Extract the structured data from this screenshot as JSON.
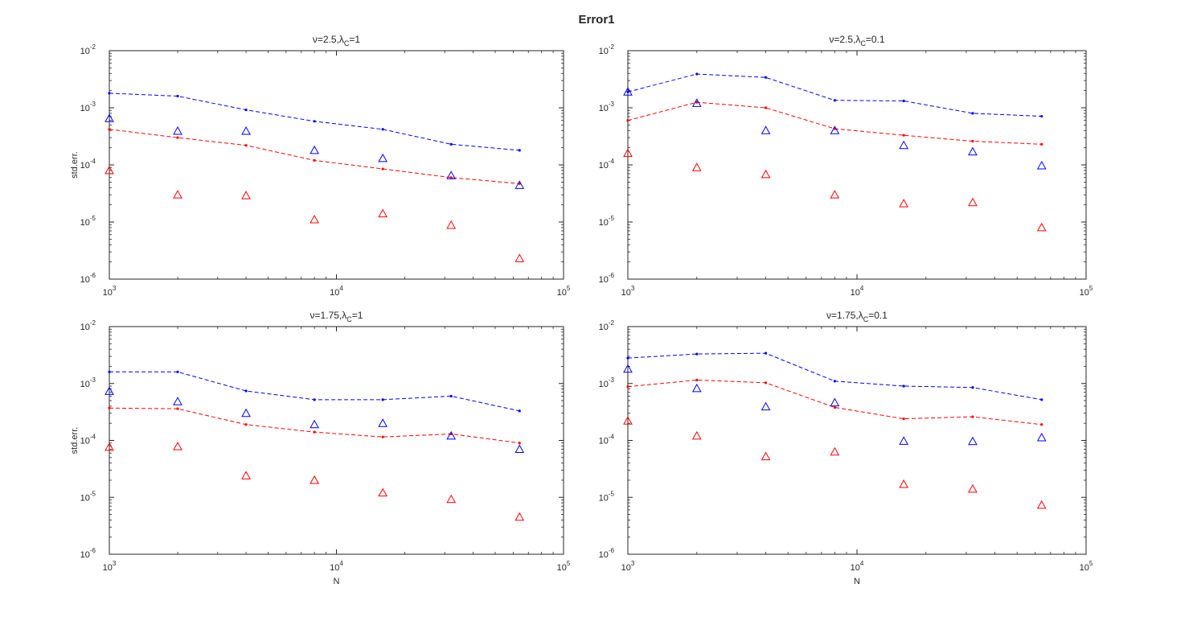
{
  "figure_title": "Error1",
  "chart_data": [
    {
      "type": "line",
      "title": {
        "pre": "ν=2.5,λ",
        "sub": "C",
        "post": "=1"
      },
      "xlabel": "",
      "ylabel": "std.err.",
      "xscale": "log",
      "yscale": "log",
      "xlim": [
        1000,
        100000
      ],
      "ylim": [
        1e-06,
        0.01
      ],
      "xticks": [
        {
          "base": "10",
          "exp": "3"
        },
        {
          "base": "10",
          "exp": "4"
        },
        {
          "base": "10",
          "exp": "5"
        }
      ],
      "yticks": [
        {
          "base": "10",
          "exp": "-6"
        },
        {
          "base": "10",
          "exp": "-5"
        },
        {
          "base": "10",
          "exp": "-4"
        },
        {
          "base": "10",
          "exp": "-3"
        },
        {
          "base": "10",
          "exp": "-2"
        }
      ],
      "x": [
        1000,
        2000,
        4000,
        8000,
        16000,
        32000,
        64000
      ],
      "series": [
        {
          "name": "blue-line",
          "style": "dashed-line",
          "color": "#0000ff",
          "values": [
            0.0018,
            0.0016,
            0.00092,
            0.00058,
            0.00042,
            0.00023,
            0.00018
          ]
        },
        {
          "name": "red-line",
          "style": "dashed-line",
          "color": "#ff0000",
          "values": [
            0.00042,
            0.0003,
            0.00022,
            0.00012,
            8.5e-05,
            6e-05,
            4.7e-05
          ]
        },
        {
          "name": "blue-triangles",
          "style": "triangle",
          "color": "#0000ff",
          "values": [
            0.00065,
            0.00039,
            0.00039,
            0.00018,
            0.00013,
            6.5e-05,
            4.4e-05
          ]
        },
        {
          "name": "red-triangles",
          "style": "triangle",
          "color": "#ff0000",
          "values": [
            8e-05,
            3e-05,
            2.9e-05,
            1.1e-05,
            1.4e-05,
            8.8e-06,
            2.3e-06
          ]
        }
      ]
    },
    {
      "type": "line",
      "title": {
        "pre": "ν=2.5,λ",
        "sub": "C",
        "post": "=0.1"
      },
      "xlabel": "",
      "ylabel": "",
      "xscale": "log",
      "yscale": "log",
      "xlim": [
        1000,
        100000
      ],
      "ylim": [
        1e-06,
        0.01
      ],
      "xticks": [
        {
          "base": "10",
          "exp": "3"
        },
        {
          "base": "10",
          "exp": "4"
        },
        {
          "base": "10",
          "exp": "5"
        }
      ],
      "yticks": [
        {
          "base": "10",
          "exp": "-6"
        },
        {
          "base": "10",
          "exp": "-5"
        },
        {
          "base": "10",
          "exp": "-4"
        },
        {
          "base": "10",
          "exp": "-3"
        },
        {
          "base": "10",
          "exp": "-2"
        }
      ],
      "x": [
        1000,
        2000,
        4000,
        8000,
        16000,
        32000,
        64000
      ],
      "series": [
        {
          "name": "blue-line",
          "style": "dashed-line",
          "color": "#0000ff",
          "values": [
            0.0019,
            0.0039,
            0.0034,
            0.00135,
            0.00132,
            0.0008,
            0.00071
          ]
        },
        {
          "name": "red-line",
          "style": "dashed-line",
          "color": "#ff0000",
          "values": [
            0.0006,
            0.00125,
            0.001,
            0.00043,
            0.00033,
            0.00026,
            0.00023
          ]
        },
        {
          "name": "blue-triangles",
          "style": "triangle",
          "color": "#0000ff",
          "values": [
            0.0019,
            0.0012,
            0.0004,
            0.0004,
            0.00022,
            0.00017,
            9.7e-05
          ]
        },
        {
          "name": "red-triangles",
          "style": "triangle",
          "color": "#ff0000",
          "values": [
            0.00016,
            9e-05,
            6.8e-05,
            3e-05,
            2.1e-05,
            2.2e-05,
            8e-06
          ]
        }
      ]
    },
    {
      "type": "line",
      "title": {
        "pre": "ν=1.75,λ",
        "sub": "C",
        "post": "=1"
      },
      "xlabel": "N",
      "ylabel": "std.err.",
      "xscale": "log",
      "yscale": "log",
      "xlim": [
        1000,
        100000
      ],
      "ylim": [
        1e-06,
        0.01
      ],
      "xticks": [
        {
          "base": "10",
          "exp": "3"
        },
        {
          "base": "10",
          "exp": "4"
        },
        {
          "base": "10",
          "exp": "5"
        }
      ],
      "yticks": [
        {
          "base": "10",
          "exp": "-6"
        },
        {
          "base": "10",
          "exp": "-5"
        },
        {
          "base": "10",
          "exp": "-4"
        },
        {
          "base": "10",
          "exp": "-3"
        },
        {
          "base": "10",
          "exp": "-2"
        }
      ],
      "x": [
        1000,
        2000,
        4000,
        8000,
        16000,
        32000,
        64000
      ],
      "series": [
        {
          "name": "blue-line",
          "style": "dashed-line",
          "color": "#0000ff",
          "values": [
            0.0016,
            0.0016,
            0.00074,
            0.00052,
            0.00052,
            0.0006,
            0.00033
          ]
        },
        {
          "name": "red-line",
          "style": "dashed-line",
          "color": "#ff0000",
          "values": [
            0.00037,
            0.00036,
            0.00019,
            0.00014,
            0.000115,
            0.00013,
            9e-05
          ]
        },
        {
          "name": "blue-triangles",
          "style": "triangle",
          "color": "#0000ff",
          "values": [
            0.00073,
            0.00048,
            0.0003,
            0.00019,
            0.0002,
            0.00012,
            7e-05
          ]
        },
        {
          "name": "red-triangles",
          "style": "triangle",
          "color": "#ff0000",
          "values": [
            7.6e-05,
            7.8e-05,
            2.4e-05,
            2e-05,
            1.2e-05,
            9.2e-06,
            4.5e-06
          ]
        }
      ]
    },
    {
      "type": "line",
      "title": {
        "pre": "ν=1.75,λ",
        "sub": "C",
        "post": "=0.1"
      },
      "xlabel": "N",
      "ylabel": "",
      "xscale": "log",
      "yscale": "log",
      "xlim": [
        1000,
        100000
      ],
      "ylim": [
        1e-06,
        0.01
      ],
      "xticks": [
        {
          "base": "10",
          "exp": "3"
        },
        {
          "base": "10",
          "exp": "4"
        },
        {
          "base": "10",
          "exp": "5"
        }
      ],
      "yticks": [
        {
          "base": "10",
          "exp": "-6"
        },
        {
          "base": "10",
          "exp": "-5"
        },
        {
          "base": "10",
          "exp": "-4"
        },
        {
          "base": "10",
          "exp": "-3"
        },
        {
          "base": "10",
          "exp": "-2"
        }
      ],
      "x": [
        1000,
        2000,
        4000,
        8000,
        16000,
        32000,
        64000
      ],
      "series": [
        {
          "name": "blue-line",
          "style": "dashed-line",
          "color": "#0000ff",
          "values": [
            0.0028,
            0.0033,
            0.0034,
            0.0011,
            0.0009,
            0.00085,
            0.00052
          ]
        },
        {
          "name": "red-line",
          "style": "dashed-line",
          "color": "#ff0000",
          "values": [
            0.00088,
            0.00115,
            0.00103,
            0.00038,
            0.00024,
            0.00026,
            0.00019
          ]
        },
        {
          "name": "blue-triangles",
          "style": "triangle",
          "color": "#0000ff",
          "values": [
            0.0018,
            0.00082,
            0.00039,
            0.00046,
            9.7e-05,
            9.6e-05,
            0.000112
          ]
        },
        {
          "name": "red-triangles",
          "style": "triangle",
          "color": "#ff0000",
          "values": [
            0.00022,
            0.00012,
            5.2e-05,
            6.3e-05,
            1.7e-05,
            1.4e-05,
            7.3e-06
          ]
        }
      ]
    }
  ]
}
